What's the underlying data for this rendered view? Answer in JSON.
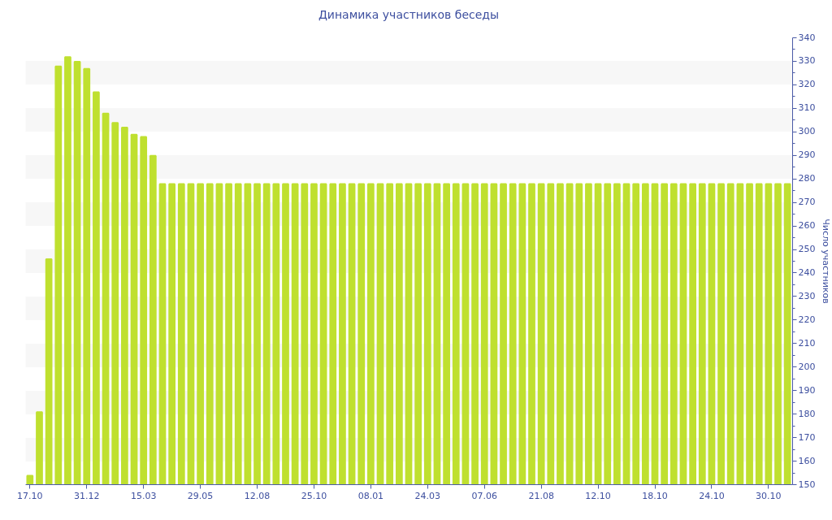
{
  "chart_data": {
    "type": "bar",
    "title": "Динамика участников беседы",
    "ylabel": "Число участников",
    "categories": [
      "17.10",
      null,
      null,
      null,
      null,
      null,
      "31.12",
      null,
      null,
      null,
      null,
      null,
      "15.03",
      null,
      null,
      null,
      null,
      null,
      "29.05",
      null,
      null,
      null,
      null,
      null,
      "12.08",
      null,
      null,
      null,
      null,
      null,
      "25.10",
      null,
      null,
      null,
      null,
      null,
      "08.01",
      null,
      null,
      null,
      null,
      null,
      "24.03",
      null,
      null,
      null,
      null,
      null,
      "07.06",
      null,
      null,
      null,
      null,
      null,
      "21.08",
      null,
      null,
      null,
      null,
      null,
      "12.10",
      null,
      null,
      null,
      null,
      null,
      "18.10",
      null,
      null,
      null,
      null,
      null,
      "24.10",
      null,
      null,
      null,
      null,
      null,
      "30.10",
      null,
      null
    ],
    "values": [
      154,
      181,
      246,
      328,
      332,
      330,
      327,
      317,
      308,
      304,
      302,
      299,
      298,
      290,
      278,
      278,
      278,
      278,
      278,
      278,
      278,
      278,
      278,
      278,
      278,
      278,
      278,
      278,
      278,
      278,
      278,
      278,
      278,
      278,
      278,
      278,
      278,
      278,
      278,
      278,
      278,
      278,
      278,
      278,
      278,
      278,
      278,
      278,
      278,
      278,
      278,
      278,
      278,
      278,
      278,
      278,
      278,
      278,
      278,
      278,
      278,
      278,
      278,
      278,
      278,
      278,
      278,
      278,
      278,
      278,
      278,
      278,
      278,
      278,
      278,
      278,
      278,
      278,
      278,
      278,
      278
    ],
    "color": "#bfe02f",
    "ylim": [
      150,
      340
    ],
    "yticks": [
      150,
      {
        "value": 155,
        "label": null
      },
      160,
      {
        "value": 165,
        "label": null
      },
      170,
      {
        "value": 175,
        "label": null
      },
      180,
      {
        "value": 185,
        "label": null
      },
      190,
      {
        "value": 195,
        "label": null
      },
      200,
      {
        "value": 205,
        "label": null
      },
      210,
      {
        "value": 215,
        "label": null
      },
      220,
      {
        "value": 225,
        "label": null
      },
      230,
      {
        "value": 235,
        "label": null
      },
      240,
      {
        "value": 245,
        "label": null
      },
      250,
      {
        "value": 255,
        "label": null
      },
      260,
      {
        "value": 265,
        "label": null
      },
      270,
      {
        "value": 275,
        "label": null
      },
      280,
      {
        "value": 285,
        "label": null
      },
      290,
      {
        "value": 295,
        "label": null
      },
      300,
      {
        "value": 305,
        "label": null
      },
      310,
      {
        "value": 315,
        "label": null
      },
      320,
      {
        "value": 325,
        "label": null
      },
      330,
      {
        "value": 335,
        "label": null
      },
      340
    ],
    "grid": "y"
  }
}
